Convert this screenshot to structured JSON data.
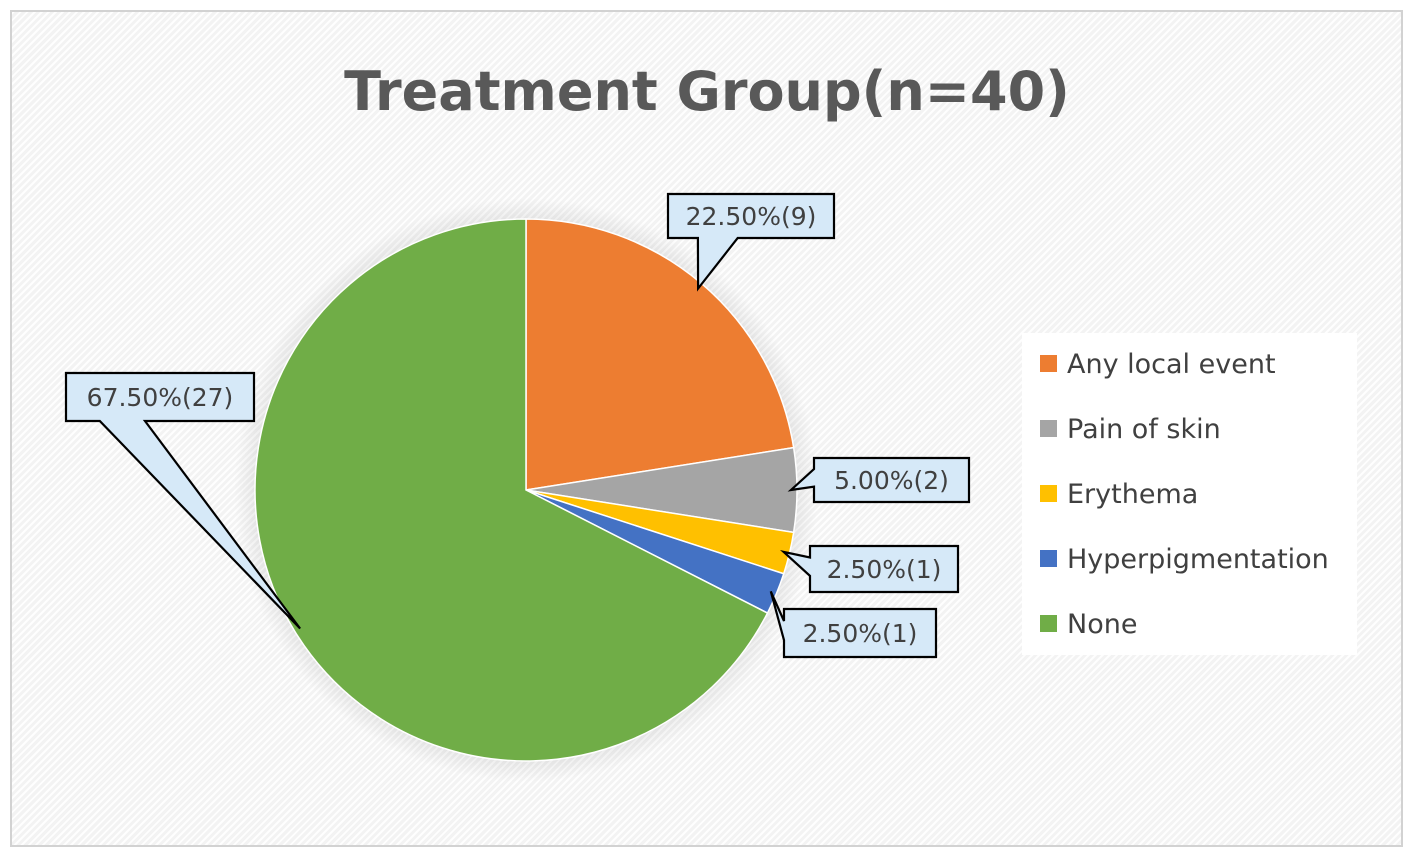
{
  "chart_data": {
    "type": "pie",
    "title": "Treatment Group(n=40)",
    "start_angle_deg": 0,
    "direction": "clockwise",
    "legend_position": "right",
    "slices": [
      {
        "name": "Any local event",
        "value": 22.5,
        "count": 9,
        "label": "22.50%(9)",
        "color": "#ED7D31"
      },
      {
        "name": "Pain of skin",
        "value": 5.0,
        "count": 2,
        "label": "5.00%(2)",
        "color": "#A5A5A5"
      },
      {
        "name": "Erythema",
        "value": 2.5,
        "count": 1,
        "label": "2.50%(1)",
        "color": "#FFC000"
      },
      {
        "name": "Hyperpigmentation",
        "value": 2.5,
        "count": 1,
        "label": "2.50%(1)",
        "color": "#4472C4"
      },
      {
        "name": "None",
        "value": 67.5,
        "count": 27,
        "label": "67.50%(27)",
        "color": "#70AD47"
      }
    ]
  },
  "style": {
    "label_fill": "#D6E9F8",
    "label_border": "#000000",
    "legend_background": "#FFFFFF",
    "title_color": "#595959",
    "text_color": "#404040"
  }
}
